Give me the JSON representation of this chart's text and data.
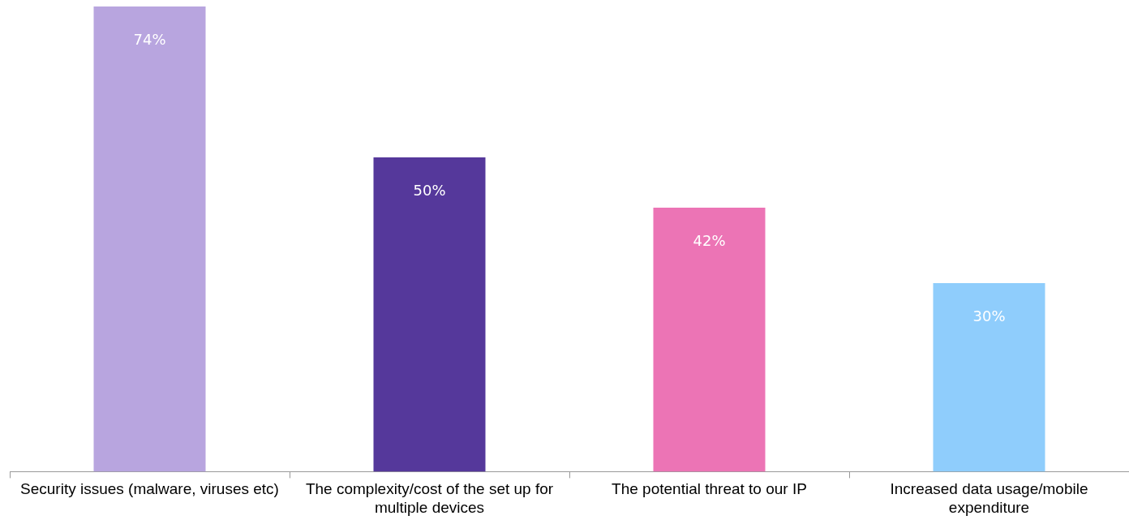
{
  "chart_data": {
    "type": "bar",
    "categories": [
      "Security issues (malware, viruses etc)",
      "The complexity/cost of the set up for multiple devices",
      "The potential threat to our IP",
      "Increased data usage/mobile expenditure"
    ],
    "values": [
      74,
      50,
      42,
      30
    ],
    "colors": [
      "#b8a5df",
      "#55389b",
      "#ec74b5",
      "#8fcdfc"
    ],
    "value_labels": [
      "74%",
      "50%",
      "42%",
      "30%"
    ],
    "relative": false,
    "grid": false,
    "legend": false
  }
}
